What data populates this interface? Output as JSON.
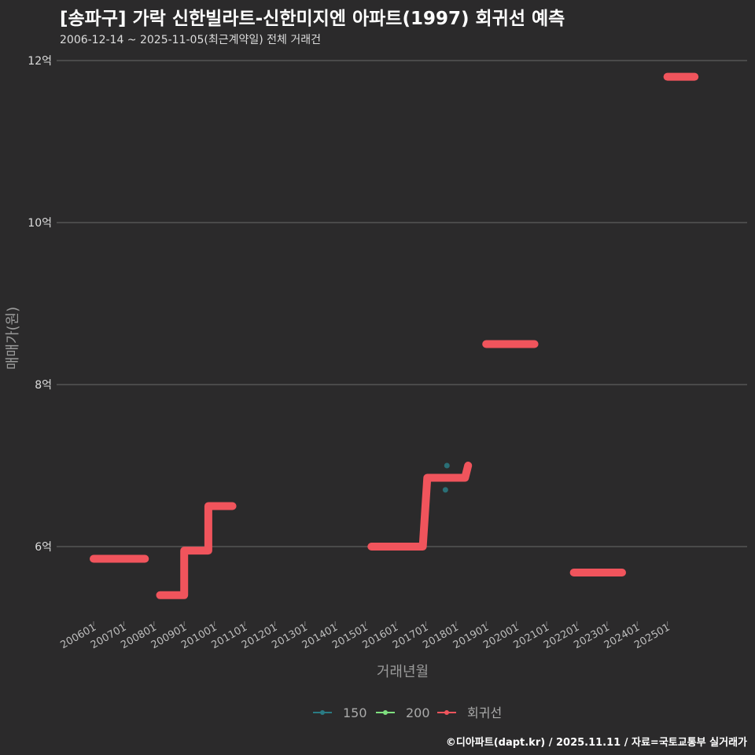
{
  "chart_data": {
    "type": "line",
    "title": "[송파구] 가락 신한빌라트-신한미지엔 아파트(1997) 회귀선 예측",
    "subtitle": "2006-12-14 ~ 2025-11-05(최근계약일) 전체 거래건",
    "xlabel": "거래년월",
    "ylabel": "매매가(원)",
    "ylim": [
      5.0,
      12.1
    ],
    "yticks": [
      6,
      8,
      10,
      12
    ],
    "ytick_labels": [
      "6억",
      "8억",
      "10억",
      "12억"
    ],
    "x_tick_labels": [
      "200601",
      "200701",
      "200801",
      "200901",
      "201001",
      "201101",
      "201201",
      "201301",
      "201401",
      "201501",
      "201601",
      "201701",
      "201801",
      "201901",
      "202001",
      "202101",
      "202201",
      "202301",
      "202401",
      "202501"
    ],
    "x_range": [
      2006.0,
      2025.5
    ],
    "series": [
      {
        "name": "150",
        "color": "#2a7b84",
        "kind": "scatter",
        "points": [
          [
            2017.65,
            6.7
          ],
          [
            2017.7,
            7.0
          ]
        ]
      },
      {
        "name": "200",
        "color": "#7fe07f",
        "kind": "scatter",
        "points": []
      },
      {
        "name": "회귀선",
        "color": "#f0545c",
        "kind": "line",
        "segments": [
          [
            [
              2006.0,
              5.85
            ],
            [
              2007.7,
              5.85
            ]
          ],
          [
            [
              2008.2,
              5.4
            ],
            [
              2009.0,
              5.4
            ],
            [
              2009.0,
              5.95
            ],
            [
              2009.8,
              5.95
            ],
            [
              2009.8,
              6.5
            ],
            [
              2010.6,
              6.5
            ]
          ],
          [
            [
              2015.2,
              6.0
            ],
            [
              2016.9,
              6.0
            ],
            [
              2017.05,
              6.85
            ],
            [
              2018.3,
              6.85
            ],
            [
              2018.4,
              7.0
            ]
          ],
          [
            [
              2019.0,
              8.5
            ],
            [
              2020.6,
              8.5
            ]
          ],
          [
            [
              2021.9,
              5.68
            ],
            [
              2023.5,
              5.68
            ]
          ],
          [
            [
              2025.0,
              11.8
            ],
            [
              2025.9,
              11.8
            ]
          ]
        ]
      }
    ],
    "legend_position": "bottom"
  },
  "footer": "©디아파트(dapt.kr) / 2025.11.11 / 자료=국토교통부 실거래가"
}
